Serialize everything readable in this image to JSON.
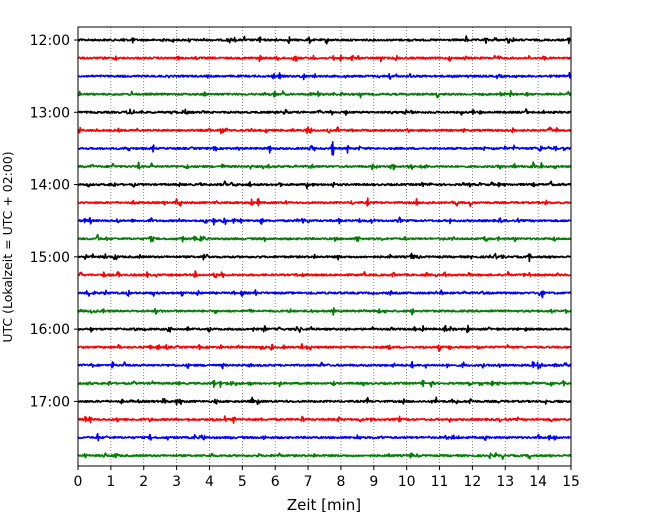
{
  "chart_data": {
    "type": "line",
    "title": "",
    "xlabel": "Zeit  [min]",
    "ylabel": "UTC (Lokalzeit = UTC + 02:00)",
    "xlim": [
      0,
      15
    ],
    "x_ticks": [
      0,
      1,
      2,
      3,
      4,
      5,
      6,
      7,
      8,
      9,
      10,
      11,
      12,
      13,
      14,
      15
    ],
    "x_gridlines": "dotted, at every minute",
    "y_ticks": [
      "12:00",
      "13:00",
      "14:00",
      "15:00",
      "16:00",
      "17:00"
    ],
    "trace_interval_minutes": 15,
    "trace_color_cycle": [
      "#000000",
      "#ff0000",
      "#0000ff",
      "#008000"
    ],
    "traces": [
      {
        "start": "12:00",
        "color": "#000000"
      },
      {
        "start": "12:15",
        "color": "#ff0000"
      },
      {
        "start": "12:30",
        "color": "#0000ff"
      },
      {
        "start": "12:45",
        "color": "#008000"
      },
      {
        "start": "13:00",
        "color": "#000000"
      },
      {
        "start": "13:15",
        "color": "#ff0000"
      },
      {
        "start": "13:30",
        "color": "#0000ff"
      },
      {
        "start": "13:45",
        "color": "#008000"
      },
      {
        "start": "14:00",
        "color": "#000000"
      },
      {
        "start": "14:15",
        "color": "#ff0000"
      },
      {
        "start": "14:30",
        "color": "#0000ff"
      },
      {
        "start": "14:45",
        "color": "#008000"
      },
      {
        "start": "15:00",
        "color": "#000000"
      },
      {
        "start": "15:15",
        "color": "#ff0000"
      },
      {
        "start": "15:30",
        "color": "#0000ff"
      },
      {
        "start": "15:45",
        "color": "#008000"
      },
      {
        "start": "16:00",
        "color": "#000000"
      },
      {
        "start": "16:15",
        "color": "#ff0000"
      },
      {
        "start": "16:30",
        "color": "#0000ff"
      },
      {
        "start": "16:45",
        "color": "#008000"
      },
      {
        "start": "17:00",
        "color": "#000000"
      },
      {
        "start": "17:15",
        "color": "#ff0000"
      },
      {
        "start": "17:30",
        "color": "#0000ff"
      },
      {
        "start": "17:45",
        "color": "#008000"
      }
    ]
  }
}
